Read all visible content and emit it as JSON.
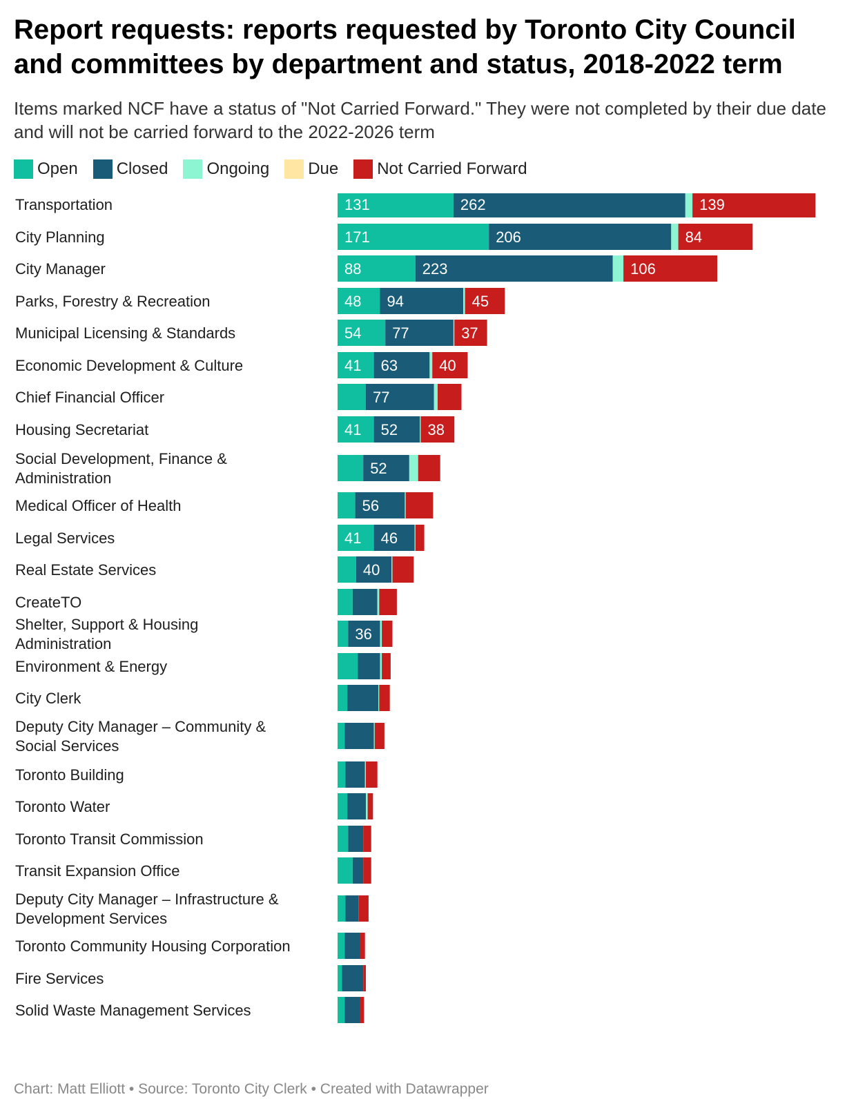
{
  "title": "Report requests: reports requested by Toronto City Council and committees by department and status, 2018-2022 term",
  "subtitle": "Items marked NCF have a status of \"Not Carried Forward.\" They were not completed by their due date and will not be carried forward to the 2022-2026 term",
  "footer": "Chart: Matt Elliott • Source: Toronto City Clerk • Created with Datawrapper",
  "colors": {
    "Open": "#0fbf9f",
    "Closed": "#1a5c78",
    "Ongoing": "#8ef5d2",
    "Due": "#ffe7a3",
    "Not Carried Forward": "#c71d1d"
  },
  "chart_data": {
    "type": "bar",
    "orientation": "horizontal",
    "stacked": true,
    "legend": "top-left",
    "series_names": [
      "Open",
      "Closed",
      "Ongoing",
      "Due",
      "Not Carried Forward"
    ],
    "categories": [
      {
        "label": "Transportation",
        "values": [
          131,
          262,
          8,
          0,
          139
        ],
        "labels": [
          "131",
          "262",
          "",
          "",
          "139"
        ]
      },
      {
        "label": "City Planning",
        "values": [
          171,
          206,
          8,
          0,
          84
        ],
        "labels": [
          "171",
          "206",
          "",
          "",
          "84"
        ]
      },
      {
        "label": "City Manager",
        "values": [
          88,
          223,
          12,
          0,
          106
        ],
        "labels": [
          "88",
          "223",
          "",
          "",
          "106"
        ]
      },
      {
        "label": "Parks, Forestry & Recreation",
        "values": [
          48,
          94,
          2,
          0,
          45
        ],
        "labels": [
          "48",
          "94",
          "",
          "",
          "45"
        ]
      },
      {
        "label": "Municipal Licensing & Standards",
        "values": [
          54,
          77,
          1,
          0,
          37
        ],
        "labels": [
          "54",
          "77",
          "",
          "",
          "37"
        ]
      },
      {
        "label": "Economic Development & Culture",
        "values": [
          41,
          63,
          3,
          0,
          40
        ],
        "labels": [
          "41",
          "63",
          "",
          "",
          "40"
        ]
      },
      {
        "label": "Chief Financial Officer",
        "values": [
          32,
          77,
          4,
          0,
          27
        ],
        "labels": [
          "",
          "77",
          "",
          "",
          ""
        ]
      },
      {
        "label": "Housing Secretariat",
        "values": [
          41,
          52,
          1,
          0,
          38
        ],
        "labels": [
          "41",
          "52",
          "",
          "",
          "38"
        ]
      },
      {
        "label": "Social Development, Finance & Administration",
        "values": [
          29,
          52,
          10,
          0,
          25
        ],
        "labels": [
          "",
          "52",
          "",
          "",
          ""
        ]
      },
      {
        "label": "Medical Officer of Health",
        "values": [
          20,
          56,
          1,
          0,
          31
        ],
        "labels": [
          "",
          "56",
          "",
          "",
          ""
        ]
      },
      {
        "label": "Legal Services",
        "values": [
          41,
          46,
          1,
          0,
          10
        ],
        "labels": [
          "41",
          "46",
          "",
          "",
          ""
        ]
      },
      {
        "label": "Real Estate Services",
        "values": [
          21,
          40,
          1,
          0,
          24
        ],
        "labels": [
          "",
          "40",
          "",
          "",
          ""
        ]
      },
      {
        "label": "CreateTO",
        "values": [
          17,
          28,
          2,
          0,
          20
        ],
        "labels": [
          "",
          "",
          "",
          "",
          ""
        ]
      },
      {
        "label": "Shelter, Support & Housing Administration",
        "values": [
          12,
          36,
          2,
          0,
          12
        ],
        "labels": [
          "",
          "36",
          "",
          "",
          ""
        ]
      },
      {
        "label": "Environment & Energy",
        "values": [
          23,
          25,
          2,
          0,
          10
        ],
        "labels": [
          "",
          "",
          "",
          "",
          ""
        ]
      },
      {
        "label": "City Clerk",
        "values": [
          11,
          35,
          1,
          0,
          12
        ],
        "labels": [
          "",
          "",
          "",
          "",
          ""
        ]
      },
      {
        "label": "Deputy City Manager – Community & Social Services",
        "values": [
          8,
          33,
          1,
          0,
          11
        ],
        "labels": [
          "",
          "",
          "",
          "",
          ""
        ]
      },
      {
        "label": "Toronto Building",
        "values": [
          9,
          22,
          1,
          0,
          13
        ],
        "labels": [
          "",
          "",
          "",
          "",
          ""
        ]
      },
      {
        "label": "Toronto Water",
        "values": [
          11,
          21,
          2,
          0,
          6
        ],
        "labels": [
          "",
          "",
          "",
          "",
          ""
        ]
      },
      {
        "label": "Toronto Transit Commission",
        "values": [
          12,
          17,
          0,
          0,
          9
        ],
        "labels": [
          "",
          "",
          "",
          "",
          ""
        ]
      },
      {
        "label": "Transit Expansion Office",
        "values": [
          17,
          12,
          0,
          0,
          9
        ],
        "labels": [
          "",
          "",
          "",
          "",
          ""
        ]
      },
      {
        "label": "Deputy City Manager – Infrastructure & Development Services",
        "values": [
          9,
          15,
          0,
          0,
          11
        ],
        "labels": [
          "",
          "",
          "",
          "",
          ""
        ]
      },
      {
        "label": "Toronto Community Housing Corporation",
        "values": [
          8,
          17,
          0,
          0,
          6
        ],
        "labels": [
          "",
          "",
          "",
          "",
          ""
        ]
      },
      {
        "label": "Fire Services",
        "values": [
          5,
          24,
          0,
          0,
          3
        ],
        "labels": [
          "",
          "",
          "",
          "",
          ""
        ]
      },
      {
        "label": "Solid Waste Management Services",
        "values": [
          8,
          17,
          0,
          0,
          5
        ],
        "labels": [
          "",
          "",
          "",
          "",
          ""
        ]
      }
    ]
  }
}
